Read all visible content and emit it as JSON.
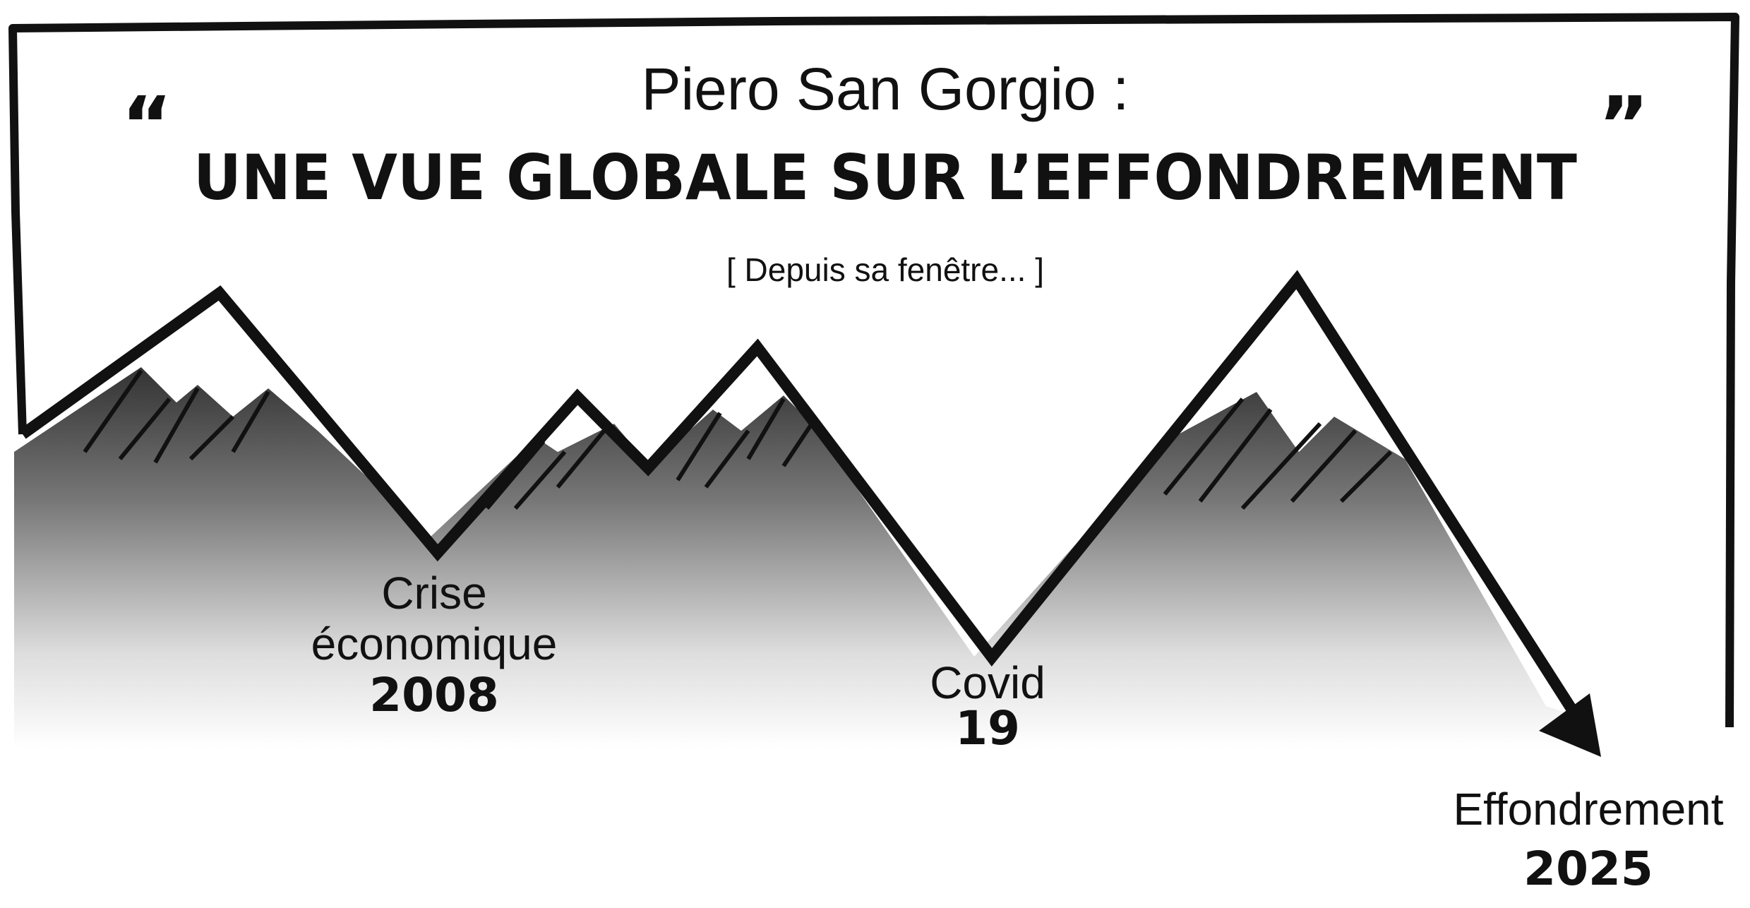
{
  "header": {
    "subtitle": "Piero San Gorgio :",
    "open_quote": "“",
    "title": "UNE VUE GLOBALE SUR L’EFFONDREMENT",
    "close_quote": "”",
    "note": "[ Depuis sa fenêtre... ]"
  },
  "events": [
    {
      "name": "Crise économique",
      "year": "2008"
    },
    {
      "name": "Covid",
      "year": "19"
    },
    {
      "name": "Effondrement",
      "year": "2025"
    }
  ]
}
